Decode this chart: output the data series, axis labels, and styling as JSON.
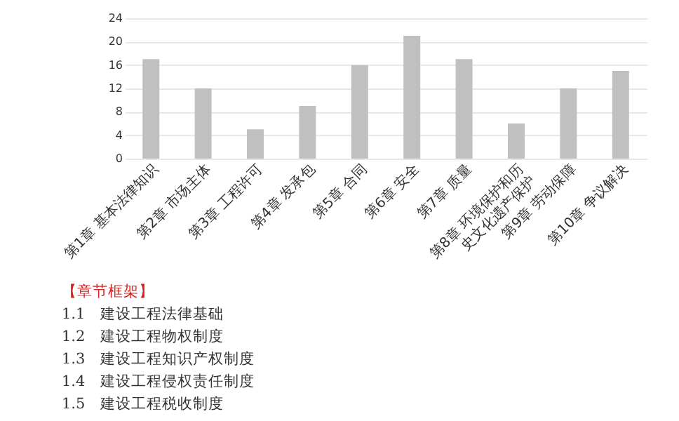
{
  "chart_data": {
    "type": "bar",
    "categories": [
      "第1章 基本法律知识",
      "第2章 市场主体",
      "第3章 工程许可",
      "第4章 发承包",
      "第5章 合同",
      "第6章 安全",
      "第7章 质量",
      "第8章 环境保护和历史文化遗产保护",
      "第9章 劳动保障",
      "第10章 争议解决"
    ],
    "values": [
      17,
      12,
      5,
      9,
      16,
      21,
      17,
      6,
      12,
      15
    ],
    "color": "#c0c0c0",
    "ylim": [
      0,
      24
    ],
    "yticks": [
      0,
      4,
      8,
      12,
      16,
      20,
      24
    ],
    "grid": "y",
    "annotations": [
      "【章节框架】",
      "1.1　建设工程法律基础",
      "1.2　建设工程物权制度",
      "1.3　建设工程知识产权制度",
      "1.4　建设工程侵权责任制度",
      "1.5　建设工程税收制度"
    ]
  }
}
